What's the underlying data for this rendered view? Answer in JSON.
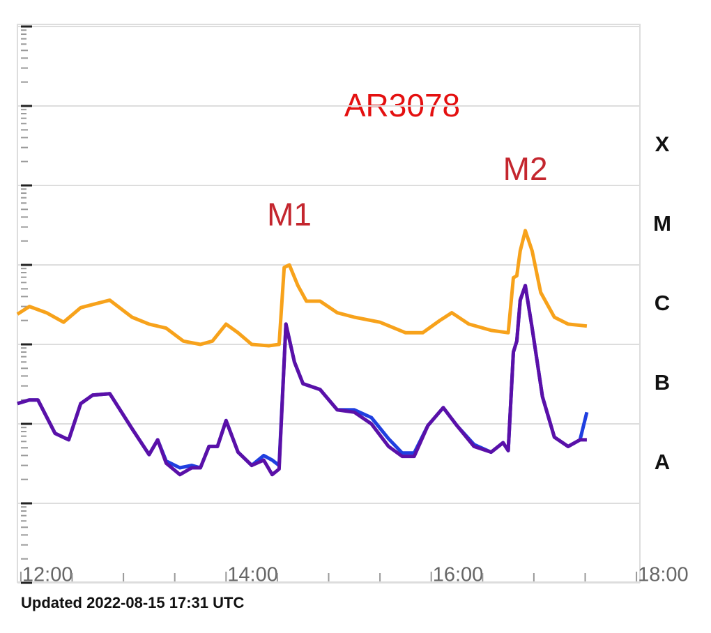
{
  "chart_data": {
    "type": "line",
    "title": "AR3078",
    "log_y": true,
    "annotations": [
      {
        "text": "M1",
        "x": "14:37",
        "y": 4e-05
      },
      {
        "text": "M2",
        "x": "16:55",
        "y": 0.00015
      }
    ],
    "footer": "Updated 2022-08-15 17:31 UTC",
    "xlim": [
      "11:58",
      "18:02"
    ],
    "xticks": [
      "12:00",
      "14:00",
      "16:00",
      "18:00"
    ],
    "xminor_ticks": [
      "12:30",
      "13:00",
      "13:30",
      "14:30",
      "15:00",
      "15:30",
      "16:30",
      "17:00",
      "17:30"
    ],
    "ylim": [
      1e-09,
      0.01
    ],
    "yticks": [
      1e-09,
      1e-08,
      1e-07,
      1e-06,
      1e-05,
      0.0001,
      0.001,
      0.01
    ],
    "grid": true,
    "class_labels": [
      {
        "value": 0.000316,
        "label": "X"
      },
      {
        "value": 3.16e-05,
        "label": "M"
      },
      {
        "value": 3.16e-06,
        "label": "C"
      },
      {
        "value": 3.16e-07,
        "label": "B"
      },
      {
        "value": 3.16e-08,
        "label": "A"
      }
    ],
    "x_long": [
      "11:58",
      "12:05",
      "12:15",
      "12:25",
      "12:35",
      "12:45",
      "12:52",
      "13:05",
      "13:15",
      "13:25",
      "13:35",
      "13:45",
      "13:52",
      "14:00",
      "14:07",
      "14:15",
      "14:25",
      "14:31",
      "14:34",
      "14:37",
      "14:42",
      "14:47",
      "14:55",
      "15:05",
      "15:15",
      "15:30",
      "15:45",
      "15:55",
      "16:05",
      "16:12",
      "16:22",
      "16:35",
      "16:45",
      "16:48",
      "16:50",
      "16:52",
      "16:55",
      "16:59",
      "17:04",
      "17:12",
      "17:20",
      "17:31"
    ],
    "x_short": [
      "11:58",
      "12:05",
      "12:10",
      "12:20",
      "12:28",
      "12:35",
      "12:42",
      "12:52",
      "13:05",
      "13:15",
      "13:20",
      "13:25",
      "13:33",
      "13:40",
      "13:45",
      "13:50",
      "13:55",
      "14:00",
      "14:07",
      "14:15",
      "14:22",
      "14:27",
      "14:31",
      "14:35",
      "14:40",
      "14:45",
      "14:55",
      "15:05",
      "15:15",
      "15:25",
      "15:35",
      "15:43",
      "15:50",
      "15:58",
      "16:07",
      "16:15",
      "16:25",
      "16:35",
      "16:42",
      "16:45",
      "16:48",
      "16:50",
      "16:52",
      "16:55",
      "16:59",
      "17:05",
      "17:12",
      "17:20",
      "17:27",
      "17:31"
    ],
    "series": [
      {
        "color": "#f7a21b",
        "x": "long",
        "values": [
          2.4e-06,
          3e-06,
          2.5e-06,
          1.9e-06,
          2.9e-06,
          3.3e-06,
          3.6e-06,
          2.2e-06,
          1.8e-06,
          1.6e-06,
          1.1e-06,
          1e-06,
          1.1e-06,
          1.8e-06,
          1.4e-06,
          1e-06,
          9.6e-07,
          1e-06,
          9.3e-06,
          1e-05,
          5.5e-06,
          3.5e-06,
          3.5e-06,
          2.5e-06,
          2.2e-06,
          1.9e-06,
          1.4e-06,
          1.4e-06,
          2e-06,
          2.5e-06,
          1.8e-06,
          1.5e-06,
          1.4e-06,
          6.9e-06,
          7.3e-06,
          1.5e-05,
          2.7e-05,
          1.5e-05,
          4.5e-06,
          2.2e-06,
          1.8e-06,
          1.7e-06
        ]
      },
      {
        "color": "#1f3fe0",
        "x": "short",
        "values": [
          1.8e-07,
          2e-07,
          2e-07,
          7.6e-08,
          6.3e-08,
          1.8e-07,
          2.3e-07,
          2.4e-07,
          8.7e-08,
          4.1e-08,
          6.3e-08,
          3.4e-08,
          2.8e-08,
          3e-08,
          2.8e-08,
          5.2e-08,
          5.2e-08,
          1.1e-07,
          4.4e-08,
          3e-08,
          4e-08,
          3.5e-08,
          3e-08,
          1.8e-06,
          6e-07,
          3.2e-07,
          2.7e-07,
          1.5e-07,
          1.5e-07,
          1.2e-07,
          6.5e-08,
          4.3e-08,
          4.3e-08,
          9.5e-08,
          1.6e-07,
          9.5e-08,
          5.5e-08,
          4.4e-08,
          5.8e-08,
          4.6e-08,
          8e-07,
          1.1e-06,
          3.6e-06,
          5.5e-06,
          1.6e-06,
          2.2e-07,
          6.8e-08,
          5.2e-08,
          6.3e-08,
          1.4e-07
        ]
      },
      {
        "color": "#5a10a8",
        "x": "short",
        "values": [
          1.8e-07,
          2e-07,
          2e-07,
          7.6e-08,
          6.3e-08,
          1.8e-07,
          2.3e-07,
          2.4e-07,
          8.7e-08,
          4.1e-08,
          6.3e-08,
          3.2e-08,
          2.3e-08,
          2.8e-08,
          2.8e-08,
          5.2e-08,
          5.2e-08,
          1.1e-07,
          4.4e-08,
          3e-08,
          3.5e-08,
          2.3e-08,
          2.7e-08,
          1.8e-06,
          6e-07,
          3.2e-07,
          2.7e-07,
          1.5e-07,
          1.4e-07,
          1e-07,
          5.2e-08,
          3.9e-08,
          3.9e-08,
          9.5e-08,
          1.6e-07,
          9.5e-08,
          5.2e-08,
          4.4e-08,
          5.8e-08,
          4.6e-08,
          8e-07,
          1.1e-06,
          3.6e-06,
          5.5e-06,
          1.6e-06,
          2.2e-07,
          6.8e-08,
          5.2e-08,
          6.3e-08,
          6.3e-08
        ]
      }
    ]
  }
}
